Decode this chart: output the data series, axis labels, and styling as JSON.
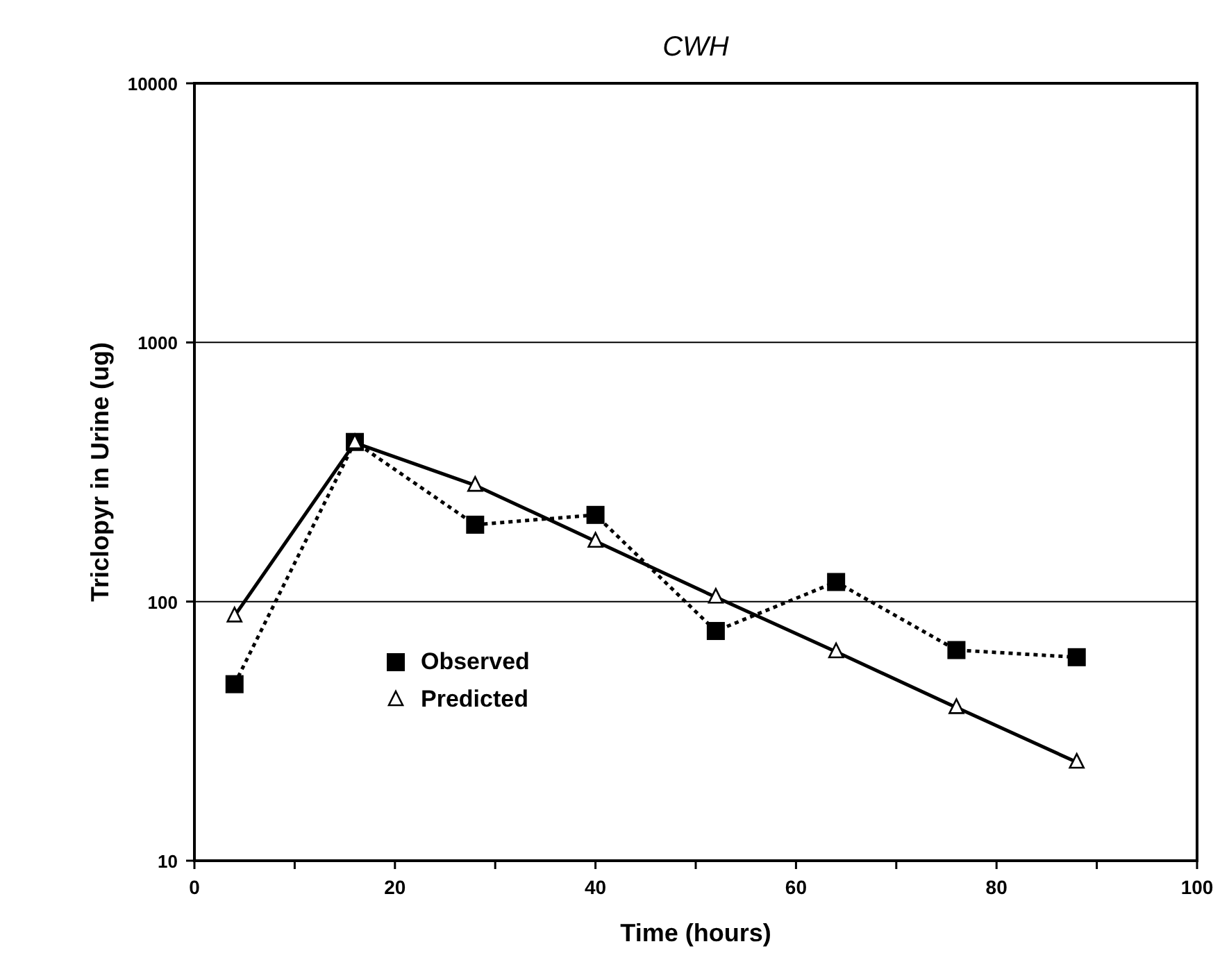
{
  "chart_data": {
    "type": "line",
    "title": "CWH",
    "xlabel": "Time (hours)",
    "ylabel": "Triclopyr in Urine (ug)",
    "log": "y",
    "grid": "y",
    "legend": "left",
    "x": [
      4,
      16,
      28,
      40,
      52,
      64,
      76,
      88
    ],
    "xlim": [
      0,
      100
    ],
    "xticks": [
      0,
      {
        "value": 10,
        "label": null
      },
      20,
      {
        "value": 30,
        "label": null
      },
      40,
      {
        "value": 50,
        "label": null
      },
      60,
      {
        "value": 70,
        "label": null
      },
      80,
      {
        "value": 90,
        "label": null
      },
      100
    ],
    "ylim": [
      10,
      10000
    ],
    "yticks": [
      10,
      100,
      1000,
      10000
    ],
    "series": [
      {
        "name": "Observed",
        "color": "#000000",
        "marker": "square",
        "line_style": "dotted",
        "values": [
          48,
          413,
          198,
          216,
          77,
          119,
          65,
          61
        ]
      },
      {
        "name": "Predicted",
        "color": "#000000",
        "marker": "triangle",
        "line_style": "solid",
        "values": [
          88,
          410,
          281,
          171,
          104,
          64,
          39,
          24
        ]
      }
    ]
  }
}
